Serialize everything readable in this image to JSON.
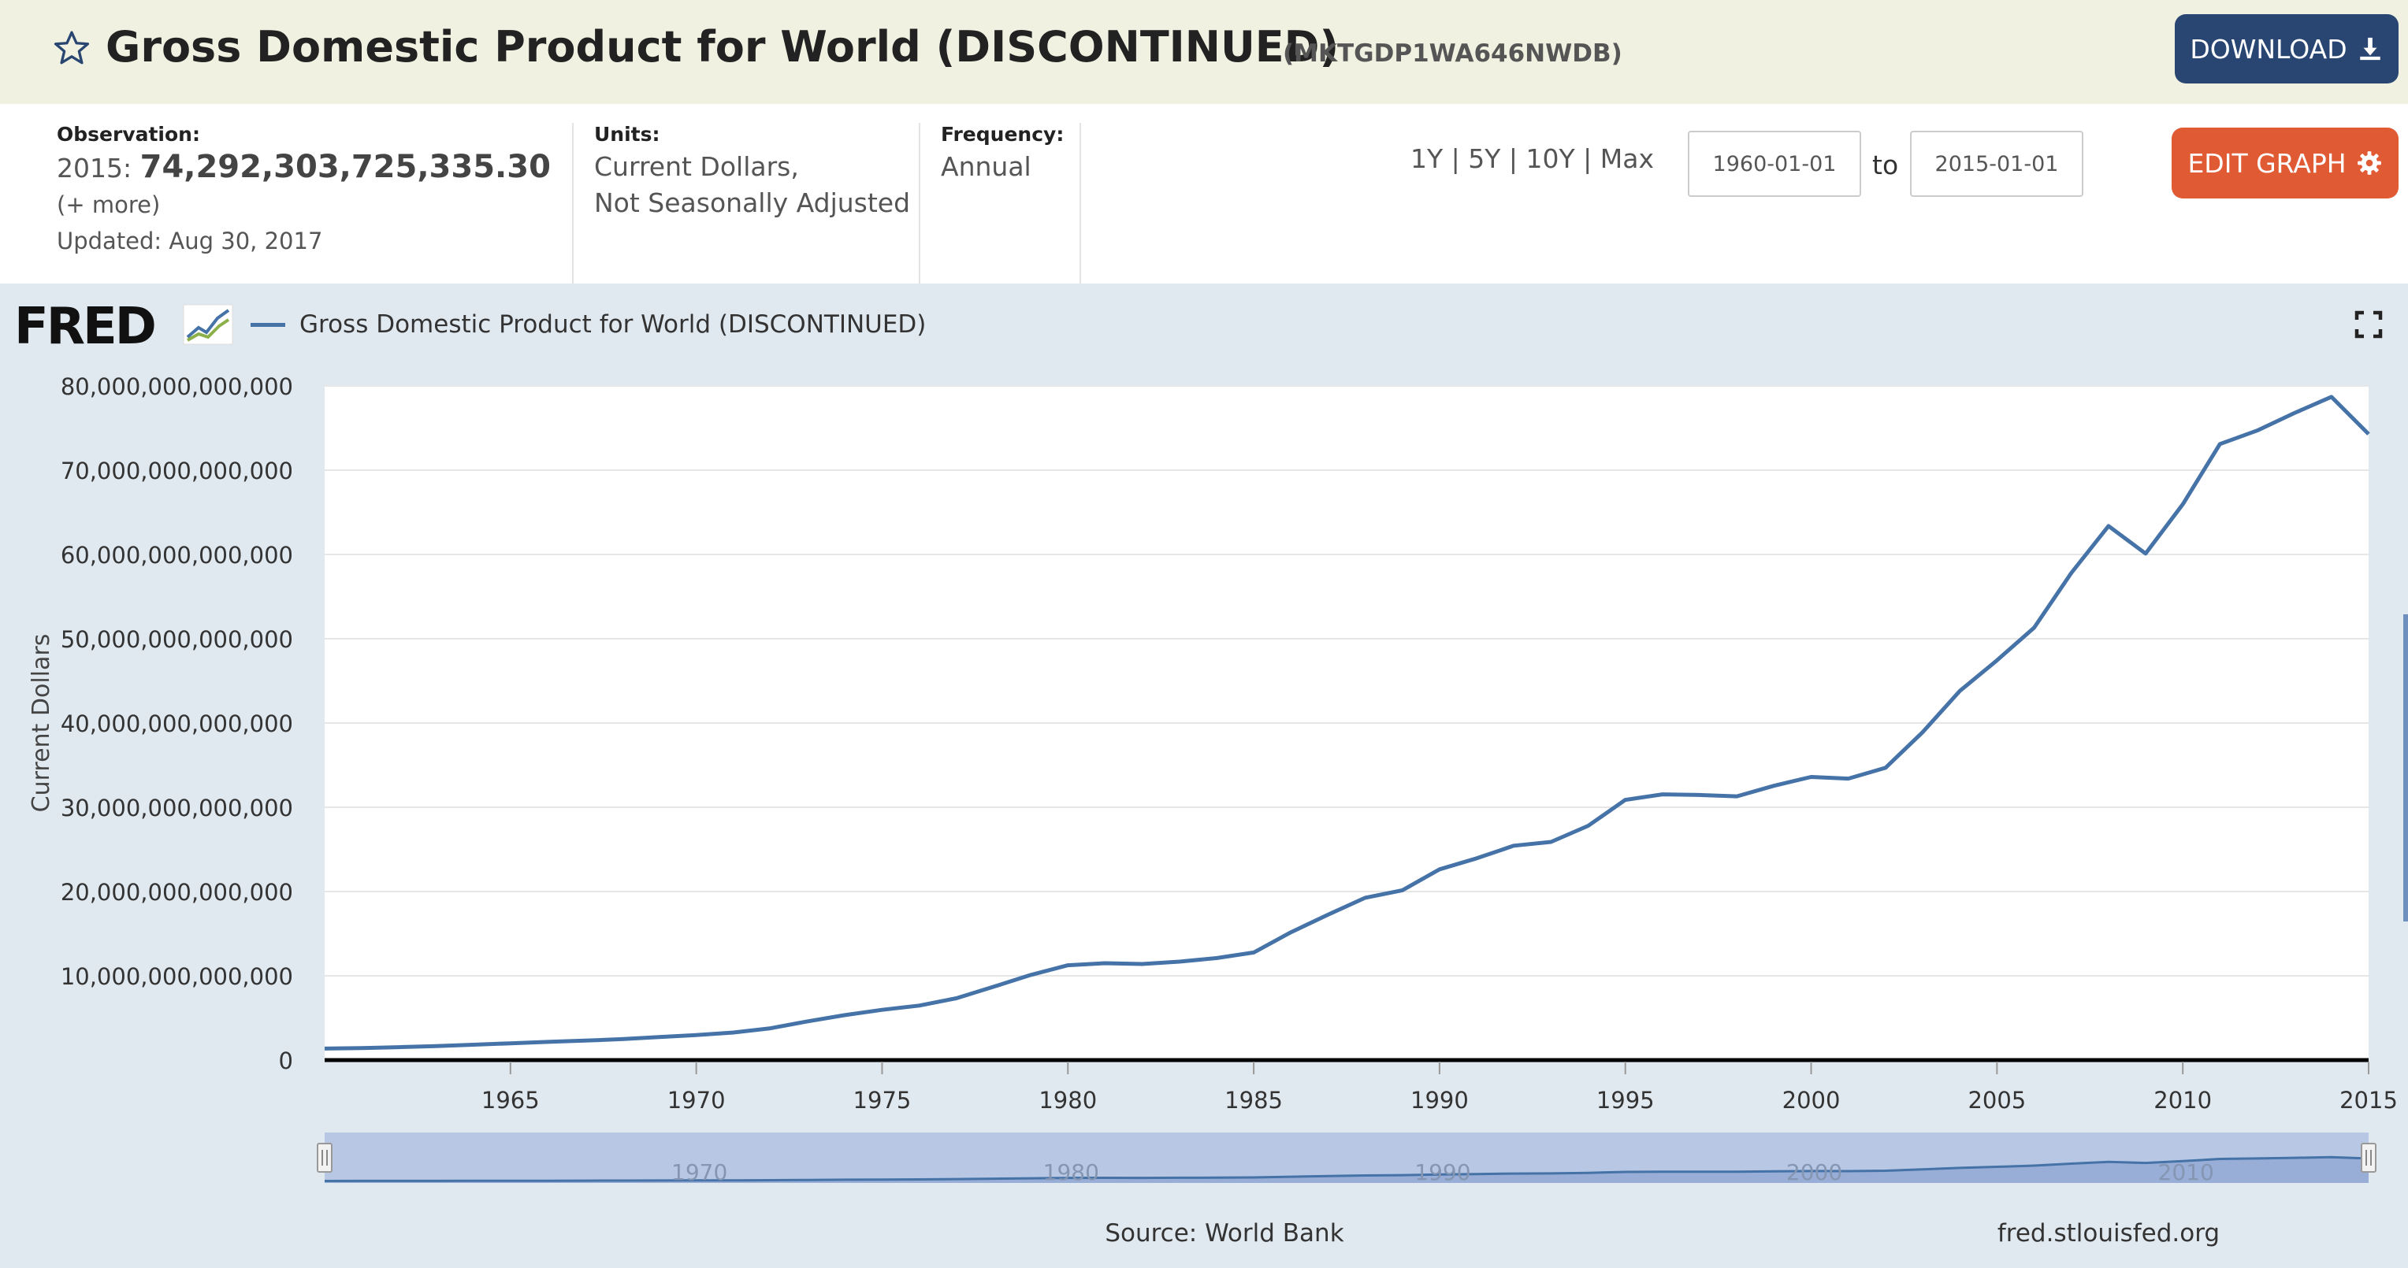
{
  "header": {
    "title": "Gross Domestic Product for World (DISCONTINUED)",
    "series_id": "(MKTGDP1WA646NWDB)",
    "download_label": "DOWNLOAD"
  },
  "info": {
    "observation_label": "Observation:",
    "observation_year": "2015:",
    "observation_value": "74,292,303,725,335.30",
    "more_label": "(+ more)",
    "updated": "Updated: Aug 30, 2017",
    "units_label": "Units:",
    "units_line1": "Current Dollars,",
    "units_line2": "Not Seasonally Adjusted",
    "frequency_label": "Frequency:",
    "frequency_value": "Annual"
  },
  "controls": {
    "range_1y": "1Y",
    "range_5y": "5Y",
    "range_10y": "10Y",
    "range_max": "Max",
    "date_start": "1960-01-01",
    "to_label": "to",
    "date_end": "2015-01-01",
    "edit_label": "EDIT GRAPH"
  },
  "fred_logo": "FRED",
  "source": "Source: World Bank",
  "site": "fred.stlouisfed.org",
  "colors": {
    "line": "#4572a7",
    "header_bg": "#f0f1e1",
    "download": "#294672",
    "edit": "#e05b33",
    "chart_bg": "#e1e9f0"
  },
  "chart_data": {
    "type": "line",
    "ylabel": "Current Dollars",
    "ylim": [
      0,
      80000000000000
    ],
    "yticks": [
      "0",
      "10,000,000,000,000",
      "20,000,000,000,000",
      "30,000,000,000,000",
      "40,000,000,000,000",
      "50,000,000,000,000",
      "60,000,000,000,000",
      "70,000,000,000,000",
      "80,000,000,000,000"
    ],
    "xlim": [
      1960,
      2015
    ],
    "xticks": [
      "1965",
      "1970",
      "1975",
      "1980",
      "1985",
      "1990",
      "1995",
      "2000",
      "2005",
      "2010",
      "2015"
    ],
    "navigator_ticks": [
      "1970",
      "1980",
      "1990",
      "2000",
      "2010"
    ],
    "grid": true,
    "legend": "top-left",
    "series": [
      {
        "name": "Gross Domestic Product for World (DISCONTINUED)",
        "x": [
          1960,
          1961,
          1962,
          1963,
          1964,
          1965,
          1966,
          1967,
          1968,
          1969,
          1970,
          1971,
          1972,
          1973,
          1974,
          1975,
          1976,
          1977,
          1978,
          1979,
          1980,
          1981,
          1982,
          1983,
          1984,
          1985,
          1986,
          1987,
          1988,
          1989,
          1990,
          1991,
          1992,
          1993,
          1994,
          1995,
          1996,
          1997,
          1998,
          1999,
          2000,
          2001,
          2002,
          2003,
          2004,
          2005,
          2006,
          2007,
          2008,
          2009,
          2010,
          2011,
          2012,
          2013,
          2014,
          2015
        ],
        "values": [
          1360000000000.0,
          1420000000000.0,
          1530000000000.0,
          1660000000000.0,
          1820000000000.0,
          1990000000000.0,
          2160000000000.0,
          2310000000000.0,
          2490000000000.0,
          2740000000000.0,
          2970000000000.0,
          3270000000000.0,
          3780000000000.0,
          4600000000000.0,
          5340000000000.0,
          5960000000000.0,
          6470000000000.0,
          7340000000000.0,
          8700000000000.0,
          10100000000000.0,
          11250000000000.0,
          11500000000000.0,
          11400000000000.0,
          11680000000000.0,
          12100000000000.0,
          12770000000000.0,
          15170000000000.0,
          17250000000000.0,
          19260000000000.0,
          20150000000000.0,
          22640000000000.0,
          23940000000000.0,
          25440000000000.0,
          25890000000000.0,
          27800000000000.0,
          30880000000000.0,
          31530000000000.0,
          31460000000000.0,
          31300000000000.0,
          32550000000000.0,
          33600000000000.0,
          33400000000000.0,
          34680000000000.0,
          38910000000000.0,
          43800000000000.0,
          47440000000000.0,
          51310000000000.0,
          57800000000000.0,
          63370000000000.0,
          60100000000000.0,
          65950000000000.0,
          73100000000000.0,
          74700000000000.0,
          76780000000000.0,
          78700000000000.0,
          74290000000000.0
        ]
      }
    ]
  }
}
